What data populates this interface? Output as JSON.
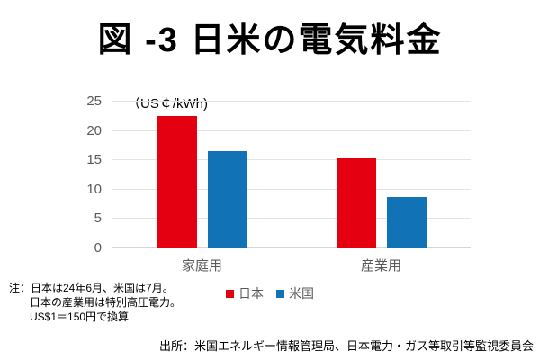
{
  "chart_data": {
    "type": "bar",
    "title": "図 -3 日米の電気料金",
    "unit_label": "（US￠/kWh)",
    "categories": [
      "家庭用",
      "産業用"
    ],
    "series": [
      {
        "name": "日本",
        "color": "#e50011",
        "values": [
          22.6,
          15.4
        ]
      },
      {
        "name": "米国",
        "color": "#1173b6",
        "values": [
          16.6,
          8.8
        ]
      }
    ],
    "ylim": [
      0,
      25
    ],
    "yticks": [
      0,
      5,
      10,
      15,
      20,
      25
    ],
    "grid": true,
    "legend_position": "bottom",
    "grid_color": "#e3e3e3",
    "axis_text_color": "#595959"
  },
  "notes": {
    "line1": "注：日本は24年6月、米国は7月。",
    "line2": "日本の産業用は特別高圧電力。",
    "line3": "US$1＝150円で換算"
  },
  "source": "出所：米国エネルギー情報管理局、日本電力・ガス等取引等監視委員会"
}
